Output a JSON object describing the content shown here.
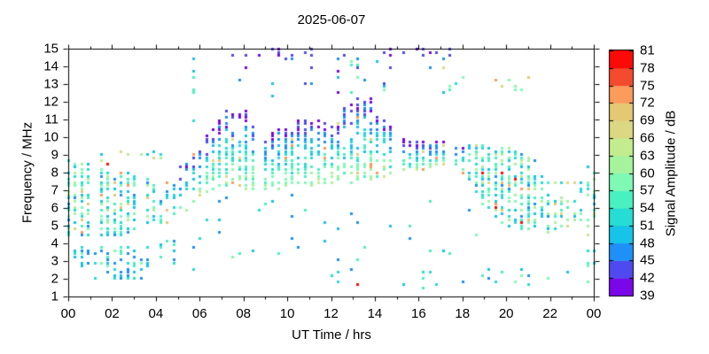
{
  "chart_data": {
    "type": "heatmap",
    "title": "2025-06-07",
    "xlabel": "UT Time / hrs",
    "ylabel": "Frequency / MHz",
    "xlim": [
      0,
      24
    ],
    "ylim": [
      1,
      15
    ],
    "grid": false,
    "xticks": {
      "values": [
        0,
        2,
        4,
        6,
        8,
        10,
        12,
        14,
        16,
        18,
        20,
        22,
        24
      ],
      "labels": [
        "00",
        "02",
        "04",
        "06",
        "08",
        "10",
        "12",
        "14",
        "16",
        "18",
        "20",
        "22",
        "00"
      ],
      "minor_step_hrs": 1
    },
    "yticks": {
      "values": [
        1,
        2,
        3,
        4,
        5,
        6,
        7,
        8,
        9,
        10,
        11,
        12,
        13,
        14,
        15
      ],
      "labels": [
        "1",
        "2",
        "3",
        "4",
        "5",
        "6",
        "7",
        "8",
        "9",
        "10",
        "11",
        "12",
        "13",
        "14",
        "15"
      ]
    },
    "colorbar": {
      "label": "Signal Amplitude / dB",
      "min": 39,
      "max": 81,
      "step": 3,
      "tick_labels": [
        "39",
        "42",
        "45",
        "48",
        "51",
        "54",
        "57",
        "60",
        "63",
        "66",
        "69",
        "72",
        "75",
        "78",
        "81"
      ],
      "colors_low_to_high": [
        "#7a06ea",
        "#4f49f0",
        "#1e90f8",
        "#17c3e9",
        "#25ddd2",
        "#49f0c0",
        "#7efab4",
        "#a5f49d",
        "#c3ec8e",
        "#dcd783",
        "#e5c873",
        "#fb9b5c",
        "#f44b2e",
        "#fb0a07"
      ]
    },
    "frame_color": "#000000",
    "background_color": "#ffffff",
    "sampling": {
      "time_step_hrs": 0.3,
      "freq_step_mhz": 0.175,
      "seed": 20250607
    },
    "main_band_envelope": [
      [
        0.0,
        4.4,
        8.7,
        26
      ],
      [
        1.0,
        4.4,
        8.5,
        26
      ],
      [
        2.0,
        4.4,
        8.1,
        24
      ],
      [
        3.0,
        4.6,
        7.9,
        18
      ],
      [
        3.7,
        5.0,
        7.7,
        9
      ],
      [
        4.5,
        5.0,
        7.8,
        7
      ],
      [
        5.2,
        5.4,
        8.5,
        8
      ],
      [
        6.0,
        6.8,
        9.6,
        16
      ],
      [
        6.6,
        7.2,
        10.7,
        22
      ],
      [
        7.4,
        7.3,
        11.8,
        26
      ],
      [
        8.2,
        7.1,
        11.4,
        24
      ],
      [
        9.0,
        6.9,
        10.3,
        20
      ],
      [
        10.0,
        7.2,
        10.6,
        20
      ],
      [
        11.0,
        7.3,
        11.4,
        22
      ],
      [
        12.0,
        7.4,
        11.1,
        20
      ],
      [
        13.0,
        7.5,
        12.1,
        22
      ],
      [
        13.6,
        7.6,
        12.4,
        22
      ],
      [
        14.2,
        7.7,
        11.6,
        20
      ],
      [
        15.0,
        7.9,
        10.1,
        14
      ],
      [
        16.0,
        8.2,
        9.8,
        11
      ],
      [
        17.0,
        8.4,
        9.7,
        9
      ],
      [
        18.0,
        7.9,
        9.6,
        11
      ],
      [
        19.0,
        6.0,
        9.7,
        20
      ],
      [
        20.0,
        5.0,
        9.5,
        22
      ],
      [
        21.0,
        4.6,
        9.1,
        22
      ],
      [
        21.6,
        4.5,
        8.2,
        16
      ],
      [
        22.2,
        4.8,
        6.6,
        8
      ],
      [
        23.2,
        5.0,
        6.5,
        7
      ],
      [
        23.6,
        3.5,
        8.7,
        12
      ],
      [
        24.0,
        2.6,
        8.7,
        12
      ]
    ],
    "scatter_regions": [
      {
        "name": "low-band-early",
        "t": [
          0.3,
          3.6
        ],
        "f": [
          2.8,
          3.8
        ],
        "n": 60,
        "amp": [
          45,
          58
        ]
      },
      {
        "name": "lowest-early",
        "t": [
          1.3,
          3.4
        ],
        "f": [
          2.0,
          2.6
        ],
        "n": 22,
        "amp": [
          45,
          54
        ]
      },
      {
        "name": "below-dawn",
        "t": [
          3.6,
          5.9
        ],
        "f": [
          2.5,
          4.5
        ],
        "n": 14,
        "amp": [
          45,
          58
        ]
      },
      {
        "name": "top-purple",
        "t": [
          7.4,
          17.6
        ],
        "f": [
          14.55,
          15.0
        ],
        "n": 26,
        "amp": [
          39,
          44
        ]
      },
      {
        "name": "high-scatter",
        "t": [
          7.8,
          18.3
        ],
        "f": [
          12.4,
          14.5
        ],
        "n": 34,
        "amp": [
          39,
          60
        ]
      },
      {
        "name": "high-right",
        "t": [
          19.3,
          21.2
        ],
        "f": [
          12.6,
          13.4
        ],
        "n": 6,
        "amp": [
          57,
          72
        ]
      },
      {
        "name": "midday-below",
        "t": [
          6.2,
          18.5
        ],
        "f": [
          3.0,
          6.9
        ],
        "n": 34,
        "amp": [
          45,
          58
        ]
      },
      {
        "name": "evening-line",
        "t": [
          18.9,
          24.0
        ],
        "f": [
          7.38,
          7.56
        ],
        "n": 42,
        "amp": [
          51,
          70
        ]
      },
      {
        "name": "low-late",
        "t": [
          12.0,
          23.6
        ],
        "f": [
          1.5,
          2.7
        ],
        "n": 26,
        "amp": [
          45,
          60
        ]
      },
      {
        "name": "right-edge-column",
        "t": [
          23.55,
          24.0
        ],
        "f": [
          2.5,
          8.7
        ],
        "n": 24,
        "amp": [
          48,
          66
        ]
      },
      {
        "name": "predawn-high",
        "t": [
          1.5,
          4.6
        ],
        "f": [
          8.75,
          9.3
        ],
        "n": 9,
        "amp": [
          45,
          70
        ]
      },
      {
        "name": "morning-column",
        "t": [
          5.55,
          5.85
        ],
        "f": [
          10.5,
          14.8
        ],
        "n": 6,
        "amp": [
          45,
          55
        ]
      }
    ],
    "notable_points": [
      {
        "t": 1.66,
        "f": 8.55,
        "amp": 80
      },
      {
        "t": 13.1,
        "f": 1.65,
        "amp": 80
      },
      {
        "t": 19.0,
        "f": 8.0,
        "amp": 80
      },
      {
        "t": 19.8,
        "f": 8.0,
        "amp": 80
      },
      {
        "t": 20.3,
        "f": 7.7,
        "amp": 79
      },
      {
        "t": 2.5,
        "f": 9.15,
        "amp": 68
      },
      {
        "t": 4.0,
        "f": 8.8,
        "amp": 68
      },
      {
        "t": 19.6,
        "f": 13.3,
        "amp": 73
      },
      {
        "t": 17.0,
        "f": 14.0,
        "amp": 68
      }
    ]
  }
}
